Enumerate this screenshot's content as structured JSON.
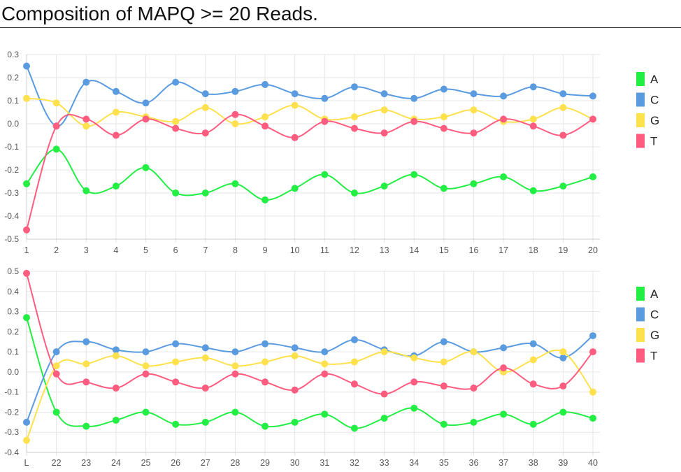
{
  "page": {
    "title": "Composition of MAPQ >= 20 Reads."
  },
  "chart_data": [
    {
      "type": "line",
      "x": [
        "1",
        "2",
        "3",
        "4",
        "5",
        "6",
        "7",
        "8",
        "9",
        "10",
        "11",
        "12",
        "13",
        "14",
        "15",
        "16",
        "17",
        "18",
        "19",
        "20"
      ],
      "ylim": [
        -0.5,
        0.3
      ],
      "yticks": [
        "0.3",
        "0.2",
        "0.1",
        "0.0",
        "-0.1",
        "-0.2",
        "-0.3",
        "-0.4",
        "-0.5"
      ],
      "grid": true,
      "legend": "right",
      "series": [
        {
          "name": "A",
          "color": "#22ee44",
          "values": [
            -0.26,
            -0.11,
            -0.29,
            -0.27,
            -0.19,
            -0.3,
            -0.3,
            -0.26,
            -0.33,
            -0.28,
            -0.22,
            -0.3,
            -0.27,
            -0.22,
            -0.28,
            -0.26,
            -0.23,
            -0.29,
            -0.27,
            -0.23
          ]
        },
        {
          "name": "C",
          "color": "#5a9be0",
          "values": [
            0.25,
            -0.01,
            0.18,
            0.14,
            0.09,
            0.18,
            0.13,
            0.14,
            0.17,
            0.13,
            0.11,
            0.16,
            0.13,
            0.11,
            0.15,
            0.13,
            0.12,
            0.16,
            0.13,
            0.12
          ]
        },
        {
          "name": "G",
          "color": "#ffe14d",
          "values": [
            0.11,
            0.09,
            -0.01,
            0.05,
            0.03,
            0.01,
            0.07,
            0.0,
            0.03,
            0.08,
            0.02,
            0.03,
            0.06,
            0.02,
            0.03,
            0.06,
            0.01,
            0.02,
            0.07,
            0.02
          ]
        },
        {
          "name": "T",
          "color": "#ff5c80",
          "values": [
            -0.46,
            -0.01,
            0.02,
            -0.05,
            0.02,
            -0.02,
            -0.04,
            0.04,
            -0.01,
            -0.06,
            0.01,
            -0.02,
            -0.04,
            0.01,
            -0.02,
            -0.04,
            0.02,
            -0.01,
            -0.05,
            0.02
          ]
        }
      ]
    },
    {
      "type": "line",
      "x": [
        "L",
        "22",
        "23",
        "24",
        "25",
        "26",
        "27",
        "28",
        "29",
        "30",
        "31",
        "32",
        "33",
        "34",
        "35",
        "36",
        "37",
        "38",
        "39",
        "40"
      ],
      "ylim": [
        -0.4,
        0.5
      ],
      "yticks": [
        "0.5",
        "0.4",
        "0.3",
        "0.2",
        "0.1",
        "0.0",
        "-0.1",
        "-0.2",
        "-0.3",
        "-0.4"
      ],
      "grid": true,
      "legend": "right",
      "series": [
        {
          "name": "A",
          "color": "#22ee44",
          "values": [
            0.27,
            -0.2,
            -0.27,
            -0.24,
            -0.2,
            -0.26,
            -0.25,
            -0.2,
            -0.27,
            -0.25,
            -0.21,
            -0.28,
            -0.23,
            -0.18,
            -0.26,
            -0.25,
            -0.21,
            -0.26,
            -0.2,
            -0.23
          ]
        },
        {
          "name": "C",
          "color": "#5a9be0",
          "values": [
            -0.25,
            0.1,
            0.15,
            0.11,
            0.1,
            0.14,
            0.12,
            0.1,
            0.14,
            0.12,
            0.1,
            0.16,
            0.11,
            0.08,
            0.15,
            0.1,
            0.12,
            0.14,
            0.07,
            0.18
          ]
        },
        {
          "name": "G",
          "color": "#ffe14d",
          "values": [
            -0.34,
            0.03,
            0.04,
            0.08,
            0.03,
            0.05,
            0.07,
            0.03,
            0.05,
            0.08,
            0.04,
            0.05,
            0.1,
            0.07,
            0.05,
            0.1,
            0.0,
            0.06,
            0.1,
            -0.1
          ]
        },
        {
          "name": "T",
          "color": "#ff5c80",
          "values": [
            0.49,
            -0.01,
            -0.05,
            -0.08,
            -0.01,
            -0.05,
            -0.08,
            -0.01,
            -0.05,
            -0.09,
            -0.01,
            -0.06,
            -0.11,
            -0.05,
            -0.07,
            -0.08,
            0.02,
            -0.06,
            -0.07,
            0.1
          ]
        }
      ]
    }
  ]
}
